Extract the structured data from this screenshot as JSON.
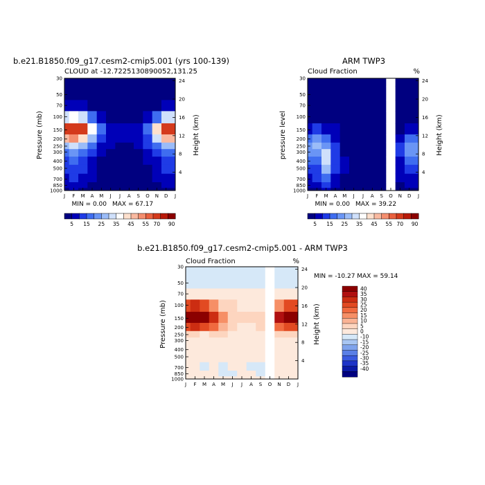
{
  "figure_title": "b.e21.B1850.f09_g17.cesm2-cmip5.001 (yrs 100-139)",
  "chart_data": [
    {
      "type": "heatmap",
      "id": "model",
      "title": "b.e21.B1850.f09_g17.cesm2-cmip5.001 (yrs 100-139)",
      "subtitle": "CLOUD at -12.7225130890052,131.25",
      "right_note": "",
      "ylabel": "Pressure (mb)",
      "y2label": "Height (km)",
      "x_ticks": [
        "J",
        "F",
        "M",
        "A",
        "M",
        "J",
        "J",
        "A",
        "S",
        "O",
        "N",
        "D",
        "J"
      ],
      "y_ticks": [
        "30",
        "50",
        "70",
        "100",
        "150",
        "200",
        "250",
        "300",
        "400",
        "500",
        "700",
        "850",
        "1000"
      ],
      "y2_ticks": [
        "24",
        "20",
        "16",
        "12",
        "8",
        "4"
      ],
      "min_text": "MIN =    0.00",
      "max_text": "MAX =   67.17",
      "min": 0.0,
      "max": 67.17,
      "missing_months": [],
      "value_grid_months_x_pressure": {
        "pressure_levels": [
          30,
          50,
          70,
          100,
          150,
          200,
          250,
          300,
          400,
          500,
          700,
          850,
          1000
        ],
        "months": [
          "J",
          "F",
          "M",
          "A",
          "M",
          "J",
          "J",
          "A",
          "S",
          "O",
          "N",
          "D",
          "J"
        ],
        "values": [
          [
            0,
            0,
            0,
            0,
            0,
            0,
            0,
            0,
            0,
            0,
            0,
            0,
            0
          ],
          [
            1,
            1,
            1,
            1,
            0,
            0,
            0,
            0,
            0,
            0,
            1,
            1,
            1
          ],
          [
            5,
            6,
            5,
            3,
            2,
            1,
            1,
            1,
            1,
            2,
            3,
            5,
            5
          ],
          [
            30,
            35,
            30,
            18,
            8,
            4,
            3,
            3,
            4,
            8,
            18,
            30,
            30
          ],
          [
            62,
            67,
            60,
            38,
            18,
            8,
            5,
            5,
            8,
            18,
            40,
            60,
            62
          ],
          [
            45,
            50,
            44,
            28,
            14,
            8,
            5,
            5,
            7,
            14,
            30,
            45,
            45
          ],
          [
            28,
            30,
            26,
            16,
            9,
            6,
            4,
            4,
            6,
            10,
            18,
            28,
            28
          ],
          [
            18,
            20,
            17,
            11,
            6,
            3,
            2,
            2,
            4,
            7,
            12,
            18,
            18
          ],
          [
            14,
            15,
            13,
            9,
            4,
            2,
            1,
            1,
            2,
            5,
            9,
            14,
            14
          ],
          [
            12,
            13,
            11,
            7,
            3,
            1,
            1,
            1,
            2,
            4,
            8,
            12,
            12
          ],
          [
            9,
            10,
            9,
            6,
            3,
            2,
            1,
            1,
            2,
            3,
            6,
            9,
            9
          ],
          [
            6,
            7,
            6,
            4,
            3,
            2,
            1,
            1,
            2,
            2,
            4,
            6,
            6
          ],
          [
            4,
            5,
            4,
            3,
            2,
            1,
            1,
            1,
            1,
            2,
            3,
            4,
            4
          ]
        ]
      }
    },
    {
      "type": "heatmap",
      "id": "obs",
      "title": "ARM TWP3",
      "subtitle": "Cloud Fraction",
      "right_note": "%",
      "ylabel": "pressure level",
      "y2label": "Height (km)",
      "x_ticks": [
        "J",
        "F",
        "M",
        "A",
        "M",
        "J",
        "J",
        "A",
        "S",
        "O",
        "N",
        "D",
        "J"
      ],
      "y_ticks": [
        "30",
        "50",
        "70",
        "100",
        "150",
        "200",
        "250",
        "300",
        "400",
        "500",
        "700",
        "850",
        "1000"
      ],
      "y2_ticks": [
        "24",
        "20",
        "16",
        "12",
        "8",
        "4"
      ],
      "min_text": "MIN =    0.00",
      "max_text": "MAX =   39.22",
      "min": 0.0,
      "max": 39.22,
      "missing_months": [
        "O"
      ],
      "value_grid_months_x_pressure": {
        "pressure_levels": [
          30,
          50,
          70,
          100,
          150,
          200,
          250,
          300,
          400,
          500,
          700,
          850,
          1000
        ],
        "months": [
          "J",
          "F",
          "M",
          "A",
          "M",
          "J",
          "J",
          "A",
          "S",
          "O",
          "N",
          "D",
          "J"
        ],
        "values": [
          [
            0,
            0,
            0,
            0,
            0,
            0,
            0,
            0,
            0,
            null,
            0,
            0,
            0
          ],
          [
            0,
            0,
            0,
            0,
            0,
            0,
            0,
            0,
            0,
            null,
            0,
            0,
            0
          ],
          [
            0,
            0,
            0,
            0,
            0,
            0,
            0,
            0,
            0,
            null,
            0,
            0,
            0
          ],
          [
            1,
            2,
            2,
            1,
            0,
            0,
            0,
            0,
            0,
            null,
            0,
            1,
            1
          ],
          [
            8,
            10,
            8,
            5,
            2,
            1,
            1,
            1,
            1,
            null,
            4,
            8,
            8
          ],
          [
            18,
            20,
            18,
            8,
            3,
            2,
            1,
            1,
            2,
            null,
            8,
            18,
            18
          ],
          [
            22,
            25,
            24,
            10,
            3,
            2,
            1,
            1,
            2,
            null,
            10,
            22,
            22
          ],
          [
            20,
            22,
            30,
            12,
            4,
            2,
            1,
            1,
            2,
            null,
            10,
            20,
            20
          ],
          [
            16,
            18,
            32,
            14,
            5,
            2,
            1,
            1,
            2,
            null,
            8,
            16,
            16
          ],
          [
            12,
            14,
            26,
            12,
            5,
            2,
            1,
            1,
            2,
            null,
            6,
            12,
            12
          ],
          [
            8,
            10,
            18,
            9,
            4,
            2,
            1,
            1,
            2,
            null,
            5,
            8,
            8
          ],
          [
            5,
            6,
            10,
            6,
            3,
            1,
            1,
            1,
            1,
            null,
            3,
            5,
            5
          ],
          [
            3,
            4,
            6,
            4,
            2,
            1,
            1,
            1,
            1,
            null,
            2,
            3,
            3
          ]
        ]
      }
    },
    {
      "type": "heatmap",
      "id": "diff",
      "title": "b.e21.B1850.f09_g17.cesm2-cmip5.001 - ARM TWP3",
      "subtitle": "Cloud Fraction",
      "right_note": "%",
      "ylabel": "Pressure (mb)",
      "y2label": "Height (km)",
      "x_ticks": [
        "J",
        "F",
        "M",
        "A",
        "M",
        "J",
        "J",
        "A",
        "S",
        "O",
        "N",
        "D",
        "J"
      ],
      "y_ticks": [
        "30",
        "50",
        "70",
        "100",
        "150",
        "200",
        "250",
        "300",
        "400",
        "500",
        "700",
        "850",
        "1000"
      ],
      "y2_ticks": [
        "24",
        "20",
        "16",
        "12",
        "8",
        "4"
      ],
      "minmax_text": "MIN = -10.27  MAX =  59.14",
      "min": -10.27,
      "max": 59.14,
      "missing_months": [
        "O"
      ],
      "value_grid_months_x_pressure": {
        "pressure_levels": [
          30,
          50,
          70,
          100,
          150,
          200,
          250,
          300,
          400,
          500,
          700,
          850,
          1000
        ],
        "months": [
          "J",
          "F",
          "M",
          "A",
          "M",
          "J",
          "J",
          "A",
          "S",
          "O",
          "N",
          "D",
          "J"
        ],
        "values": [
          [
            -1,
            -1,
            -1,
            -1,
            -1,
            -1,
            -1,
            -1,
            -1,
            null,
            -1,
            -1,
            -1
          ],
          [
            -1,
            -1,
            -1,
            -1,
            -1,
            -1,
            -1,
            -1,
            -1,
            null,
            -1,
            -1,
            -1
          ],
          [
            3,
            4,
            3,
            2,
            2,
            1,
            1,
            1,
            1,
            null,
            3,
            3,
            3
          ],
          [
            28,
            34,
            28,
            18,
            8,
            5,
            3,
            3,
            4,
            null,
            18,
            28,
            28
          ],
          [
            55,
            59,
            52,
            34,
            16,
            8,
            5,
            5,
            8,
            null,
            36,
            52,
            55
          ],
          [
            28,
            30,
            26,
            20,
            12,
            6,
            4,
            4,
            6,
            null,
            22,
            28,
            28
          ],
          [
            8,
            6,
            4,
            6,
            6,
            4,
            3,
            3,
            4,
            null,
            8,
            8,
            8
          ],
          [
            3,
            3,
            2,
            2,
            3,
            2,
            2,
            2,
            2,
            null,
            2,
            3,
            3
          ],
          [
            2,
            1,
            1,
            1,
            1,
            1,
            1,
            1,
            1,
            null,
            1,
            2,
            2
          ],
          [
            1,
            1,
            0,
            1,
            1,
            0,
            1,
            1,
            1,
            null,
            1,
            1,
            1
          ],
          [
            1,
            0,
            -1,
            0,
            -1,
            0,
            0,
            -1,
            -1,
            null,
            0,
            1,
            1
          ],
          [
            1,
            1,
            0,
            0,
            -1,
            -1,
            0,
            0,
            -1,
            null,
            0,
            1,
            1
          ],
          [
            1,
            1,
            0,
            0,
            0,
            0,
            0,
            0,
            0,
            null,
            0,
            1,
            1
          ]
        ]
      }
    }
  ],
  "colorbar_abs": {
    "labels": [
      "5",
      "15",
      "25",
      "35",
      "45",
      "55",
      "70",
      "90"
    ],
    "colors": [
      "#000080",
      "#0000b8",
      "#1f3be6",
      "#3f6df0",
      "#6a95f5",
      "#9bbcf8",
      "#cfe0fb",
      "#ffffff",
      "#fde0cd",
      "#f9b9a0",
      "#f48e6f",
      "#e9613f",
      "#d43a1c",
      "#b81a0a",
      "#8b0000"
    ]
  },
  "colorbar_diff": {
    "labels": [
      "40",
      "35",
      "30",
      "25",
      "20",
      "15",
      "10",
      "5",
      "0",
      "-10",
      "-15",
      "-20",
      "-25",
      "-30",
      "-35",
      "-40"
    ],
    "colors": [
      "#8b0000",
      "#b01010",
      "#cc2d12",
      "#e24a22",
      "#f06a3f",
      "#f68f66",
      "#fab394",
      "#fdd5bf",
      "#fde9dc",
      "#d6e8f8",
      "#a9c6f2",
      "#7fa3ec",
      "#5a7fe6",
      "#3a5ae0",
      "#1e34c8",
      "#0b1aa6",
      "#000080"
    ]
  }
}
